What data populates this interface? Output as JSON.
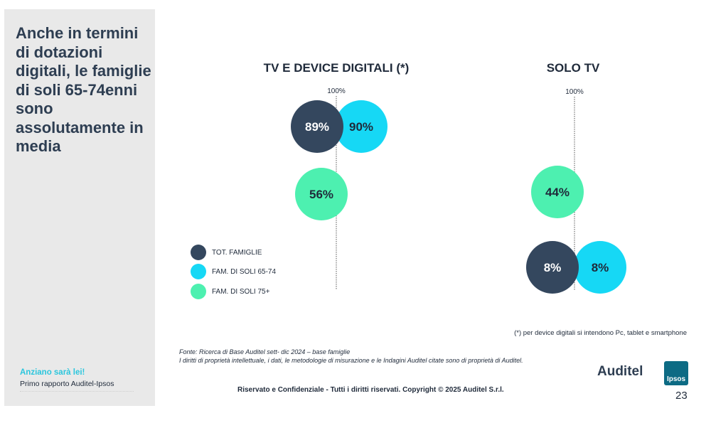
{
  "side_panel": {
    "headline": "Anche in termini di dotazioni digitali, le famiglie di soli 65-74enni sono assolutamente in media",
    "report_title": "Anziano sarà lei!",
    "report_subtitle": "Primo rapporto Auditel-Ipsos"
  },
  "chart_data": [
    {
      "type": "bubble",
      "title": "TV E DEVICE DIGITALI (*)",
      "reference_line_label": "100%",
      "rows": [
        {
          "points": [
            {
              "series": "TOT. FAMIGLIE",
              "value": 89,
              "label": "89%"
            },
            {
              "series": "FAM. DI SOLI 65-74",
              "value": 90,
              "label": "90%"
            }
          ]
        },
        {
          "points": [
            {
              "series": "FAM. DI SOLI 75+",
              "value": 56,
              "label": "56%"
            }
          ]
        }
      ]
    },
    {
      "type": "bubble",
      "title": "SOLO TV",
      "reference_line_label": "100%",
      "rows": [
        {
          "points": [
            {
              "series": "FAM. DI SOLI 75+",
              "value": 44,
              "label": "44%"
            }
          ]
        },
        {
          "points": [
            {
              "series": "TOT. FAMIGLIE",
              "value": 8,
              "label": "8%"
            },
            {
              "series": "FAM. DI SOLI 65-74",
              "value": 8,
              "label": "8%"
            }
          ]
        }
      ]
    }
  ],
  "legend": [
    {
      "label": "TOT. FAMIGLIE",
      "color": "#34475e"
    },
    {
      "label": "FAM. DI SOLI 65-74",
      "color": "#16d8f5"
    },
    {
      "label": "FAM. DI SOLI 75+",
      "color": "#4df0b0"
    }
  ],
  "footnote": "(*) per device digitali si intendono Pc, tablet e smartphone",
  "source_line1": "Fonte: Ricerca di Base Auditel sett- dic 2024 – base famiglie",
  "source_line2": "I diritti di proprietà intellettuale, i dati, le metodologie di misurazione e le Indagini Auditel citate sono di proprietà di Auditel.",
  "copyright": "Riservato e Confidenziale - Tutti i diritti riservati. Copyright © 2025 Auditel S.r.l.",
  "page_number": "23",
  "logos": {
    "auditel": "Auditel",
    "ipsos": "Ipsos"
  }
}
